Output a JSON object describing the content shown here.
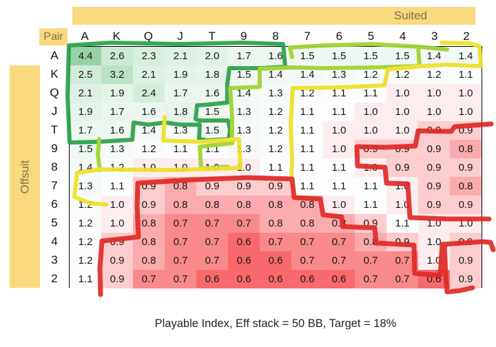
{
  "caption": "Playable Index, Eff stack = 50 BB, Target = 18%",
  "labels": {
    "suited": "Suited",
    "pair": "Pair",
    "offsuit": "Offsuit"
  },
  "grid": {
    "columns": [
      "A",
      "K",
      "Q",
      "J",
      "T",
      "9",
      "8",
      "7",
      "6",
      "5",
      "4",
      "3",
      "2"
    ],
    "rows": [
      {
        "label": "A",
        "values": [
          4.4,
          2.6,
          2.3,
          2.1,
          2.0,
          1.7,
          1.6,
          1.5,
          1.5,
          1.5,
          1.5,
          1.4,
          1.4
        ]
      },
      {
        "label": "K",
        "values": [
          2.5,
          3.2,
          2.1,
          1.9,
          1.8,
          1.5,
          1.4,
          1.4,
          1.3,
          1.2,
          1.2,
          1.2,
          1.1
        ]
      },
      {
        "label": "Q",
        "values": [
          2.1,
          1.9,
          2.4,
          1.7,
          1.6,
          1.4,
          1.3,
          1.2,
          1.1,
          1.1,
          1.0,
          1.0,
          1.0
        ]
      },
      {
        "label": "J",
        "values": [
          1.9,
          1.7,
          1.6,
          1.8,
          1.5,
          1.3,
          1.2,
          1.1,
          1.1,
          1.0,
          1.0,
          1.0,
          1.0
        ]
      },
      {
        "label": "T",
        "values": [
          1.7,
          1.6,
          1.4,
          1.3,
          1.5,
          1.3,
          1.2,
          1.1,
          1.0,
          1.0,
          1.0,
          0.9,
          0.9
        ]
      },
      {
        "label": "9",
        "values": [
          1.5,
          1.3,
          1.2,
          1.1,
          1.1,
          1.3,
          1.2,
          1.1,
          1.0,
          0.9,
          0.9,
          0.9,
          0.8
        ]
      },
      {
        "label": "8",
        "values": [
          1.4,
          1.2,
          1.0,
          1.0,
          1.0,
          1.0,
          1.1,
          1.1,
          1.1,
          1.0,
          0.9,
          0.9,
          0.9
        ]
      },
      {
        "label": "7",
        "values": [
          1.3,
          1.1,
          0.9,
          0.8,
          0.9,
          0.9,
          0.9,
          1.1,
          1.1,
          1.1,
          1.0,
          0.9,
          0.8
        ]
      },
      {
        "label": "6",
        "values": [
          1.2,
          1.0,
          0.9,
          0.8,
          0.8,
          0.8,
          0.8,
          0.8,
          1.0,
          1.1,
          1.0,
          0.9,
          0.9
        ]
      },
      {
        "label": "5",
        "values": [
          1.2,
          1.0,
          0.8,
          0.7,
          0.7,
          0.7,
          0.8,
          0.8,
          0.8,
          0.9,
          1.1,
          1.0,
          1.0
        ]
      },
      {
        "label": "4",
        "values": [
          1.2,
          0.9,
          0.8,
          0.7,
          0.7,
          0.6,
          0.7,
          0.7,
          0.7,
          0.8,
          0.9,
          1.0,
          0.9
        ]
      },
      {
        "label": "3",
        "values": [
          1.2,
          0.9,
          0.8,
          0.7,
          0.7,
          0.6,
          0.6,
          0.7,
          0.7,
          0.7,
          0.7,
          1.0,
          0.9
        ]
      },
      {
        "label": "2",
        "values": [
          1.1,
          0.9,
          0.7,
          0.7,
          0.6,
          0.6,
          0.6,
          0.6,
          0.6,
          0.7,
          0.7,
          0.6,
          0.9
        ]
      }
    ]
  },
  "colors": {
    "banner_tan": "#FBD97E",
    "banner_text": "#82704a",
    "scale": {
      "min": 0.6,
      "mid": 1.05,
      "green_full_at": 6.0,
      "green": "#63BE7B",
      "red": "#F8696B",
      "white": "#FEFEFF"
    }
  },
  "overlays": [
    {
      "name": "dark-green-region-outline",
      "color": "#2aa147"
    },
    {
      "name": "light-green-region-outline",
      "color": "#9ed32e"
    },
    {
      "name": "yellow-region-outline",
      "color": "#f0df26"
    },
    {
      "name": "red-region-outline",
      "color": "#e02a27"
    }
  ],
  "chart_data": {
    "type": "heatmap",
    "title": "Playable Index, Eff stack = 50 BB, Target = 18%",
    "x_categories": [
      "A",
      "K",
      "Q",
      "J",
      "T",
      "9",
      "8",
      "7",
      "6",
      "5",
      "4",
      "3",
      "2"
    ],
    "y_categories": [
      "A",
      "K",
      "Q",
      "J",
      "T",
      "9",
      "8",
      "7",
      "6",
      "5",
      "4",
      "3",
      "2"
    ],
    "upper_right_triangle": "Suited",
    "lower_left_triangle": "Offsuit",
    "diagonal": "Pair",
    "values": [
      [
        4.4,
        2.6,
        2.3,
        2.1,
        2.0,
        1.7,
        1.6,
        1.5,
        1.5,
        1.5,
        1.5,
        1.4,
        1.4
      ],
      [
        2.5,
        3.2,
        2.1,
        1.9,
        1.8,
        1.5,
        1.4,
        1.4,
        1.3,
        1.2,
        1.2,
        1.2,
        1.1
      ],
      [
        2.1,
        1.9,
        2.4,
        1.7,
        1.6,
        1.4,
        1.3,
        1.2,
        1.1,
        1.1,
        1.0,
        1.0,
        1.0
      ],
      [
        1.9,
        1.7,
        1.6,
        1.8,
        1.5,
        1.3,
        1.2,
        1.1,
        1.1,
        1.0,
        1.0,
        1.0,
        1.0
      ],
      [
        1.7,
        1.6,
        1.4,
        1.3,
        1.5,
        1.3,
        1.2,
        1.1,
        1.0,
        1.0,
        1.0,
        0.9,
        0.9
      ],
      [
        1.5,
        1.3,
        1.2,
        1.1,
        1.1,
        1.3,
        1.2,
        1.1,
        1.0,
        0.9,
        0.9,
        0.9,
        0.8
      ],
      [
        1.4,
        1.2,
        1.0,
        1.0,
        1.0,
        1.0,
        1.1,
        1.1,
        1.1,
        1.0,
        0.9,
        0.9,
        0.9
      ],
      [
        1.3,
        1.1,
        0.9,
        0.8,
        0.9,
        0.9,
        0.9,
        1.1,
        1.1,
        1.1,
        1.0,
        0.9,
        0.8
      ],
      [
        1.2,
        1.0,
        0.9,
        0.8,
        0.8,
        0.8,
        0.8,
        0.8,
        1.0,
        1.1,
        1.0,
        0.9,
        0.9
      ],
      [
        1.2,
        1.0,
        0.8,
        0.7,
        0.7,
        0.7,
        0.8,
        0.8,
        0.8,
        0.9,
        1.1,
        1.0,
        1.0
      ],
      [
        1.2,
        0.9,
        0.8,
        0.7,
        0.7,
        0.6,
        0.7,
        0.7,
        0.7,
        0.8,
        0.9,
        1.0,
        0.9
      ],
      [
        1.2,
        0.9,
        0.8,
        0.7,
        0.7,
        0.6,
        0.6,
        0.7,
        0.7,
        0.7,
        0.7,
        1.0,
        0.9
      ],
      [
        1.1,
        0.9,
        0.7,
        0.7,
        0.6,
        0.6,
        0.6,
        0.6,
        0.6,
        0.7,
        0.7,
        0.6,
        0.9
      ]
    ],
    "colorscale": "red-white-green (low=red #F8696B, mid~1.05=white, high=green)",
    "annotations": "hand-drawn marker outlines grouping cells into 4 tiers (dark green, light green, yellow, red)"
  }
}
